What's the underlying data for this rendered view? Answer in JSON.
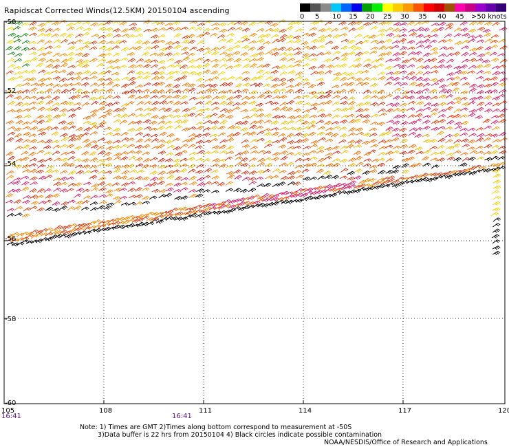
{
  "title": "Rapidscat Corrected Winds(12.5KM) 20150104 ascending",
  "legend": {
    "colors": [
      "#000000",
      "#555555",
      "#8a8a8a",
      "#00c8ff",
      "#0066ff",
      "#0000ee",
      "#00a000",
      "#00ee00",
      "#ffff00",
      "#ffcc00",
      "#ff9900",
      "#ff5500",
      "#ff0000",
      "#d00000",
      "#a05000",
      "#ff00aa",
      "#cc0088",
      "#9900cc",
      "#6600aa",
      "#330077"
    ],
    "labels": [
      "0",
      "5",
      "10",
      "15",
      "20",
      "25",
      "30",
      "35",
      "40",
      "45",
      ">50 knots"
    ]
  },
  "map": {
    "lon_ticks": [
      "105",
      "108",
      "111",
      "114",
      "117",
      "120"
    ],
    "lat_ticks": [
      "-50",
      "-52",
      "-54",
      "-56",
      "-58",
      "-60"
    ],
    "time_labels": [
      "16:41",
      "16:41"
    ]
  },
  "notes": [
    "Note: 1) Times are GMT 2)Times along bottom correspond to measurement at -50S",
    "3)Data buffer is 22 hrs from 20150104 4) Black circles indicate possible contamination",
    "NOAA/NESDIS/Office of Research and Applications"
  ]
}
